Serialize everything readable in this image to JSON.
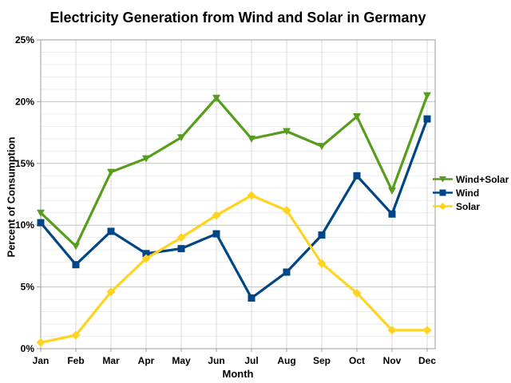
{
  "chart_data": {
    "type": "line",
    "title": "Electricity Generation from Wind and Solar in Germany",
    "xlabel": "Month",
    "ylabel": "Percent of Consumption",
    "categories": [
      "Jan",
      "Feb",
      "Mar",
      "Apr",
      "May",
      "Jun",
      "Jul",
      "Aug",
      "Sep",
      "Oct",
      "Nov",
      "Dec"
    ],
    "ylim": [
      0,
      25
    ],
    "y_major_step": 5,
    "y_minor_step": 1,
    "y_tick_labels": [
      "0%",
      "5%",
      "10%",
      "15%",
      "20%",
      "25%"
    ],
    "grid": true,
    "legend_position": "right",
    "series": [
      {
        "name": "Wind+Solar",
        "color": "#579D1C",
        "marker": "triangle",
        "values": [
          11.0,
          8.3,
          14.3,
          15.4,
          17.1,
          20.3,
          17.0,
          17.6,
          16.4,
          18.8,
          12.8,
          20.5
        ]
      },
      {
        "name": "Wind",
        "color": "#004586",
        "marker": "square",
        "values": [
          10.2,
          6.8,
          9.5,
          7.7,
          8.1,
          9.3,
          4.1,
          6.2,
          9.2,
          14.0,
          10.9,
          18.6
        ]
      },
      {
        "name": "Solar",
        "color": "#FFD320",
        "marker": "diamond",
        "values": [
          0.5,
          1.1,
          4.6,
          7.3,
          9.0,
          10.8,
          12.4,
          11.2,
          6.9,
          4.5,
          1.5,
          1.5
        ]
      }
    ],
    "colors": {
      "minor_grid": "#ececec",
      "major_grid": "#c3c3c3",
      "month_grid": "#d9d9d9",
      "border": "#9c9c9c",
      "background": "#ffffff"
    }
  }
}
